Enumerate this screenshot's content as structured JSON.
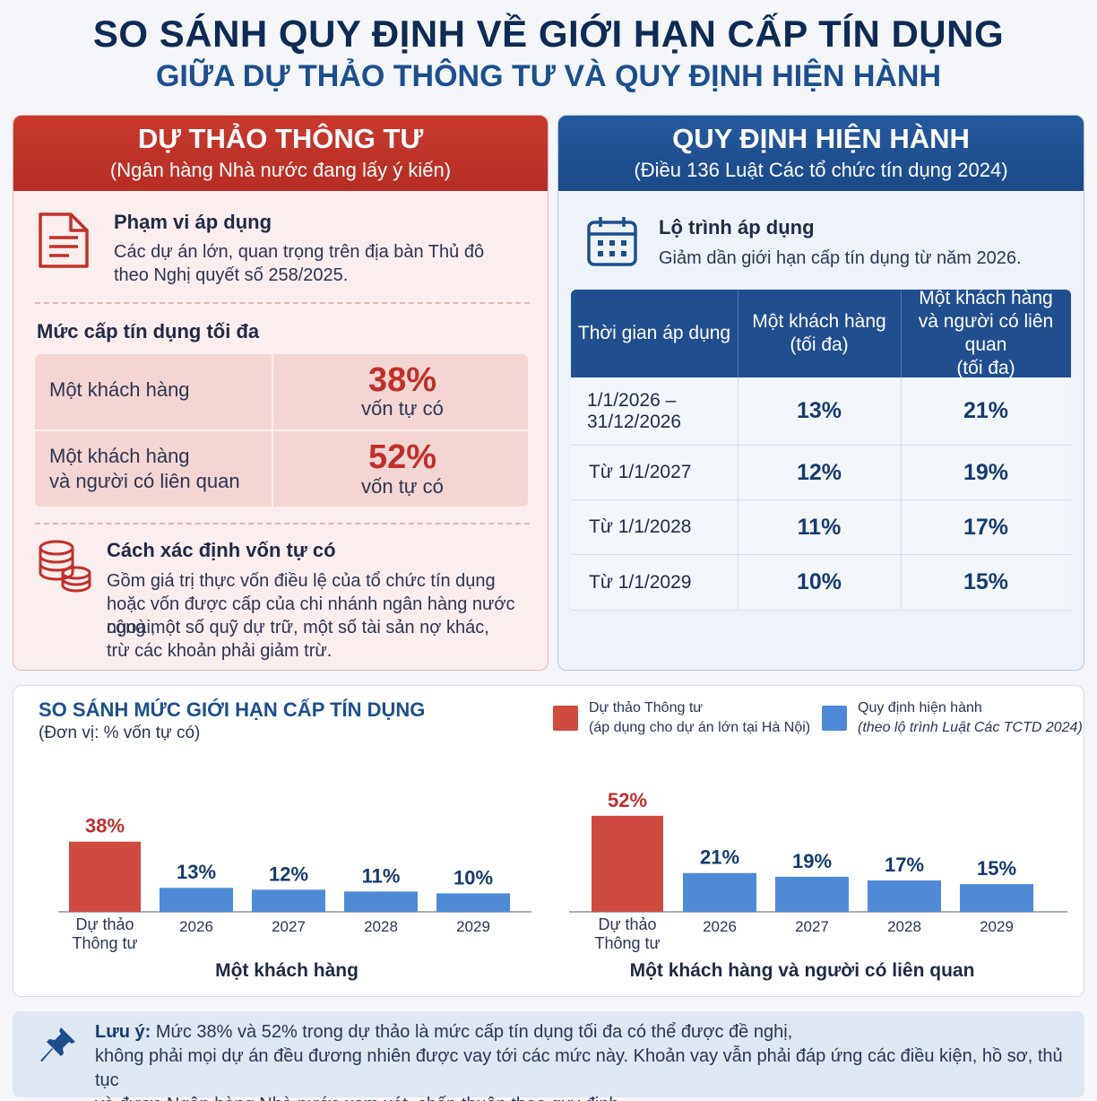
{
  "title": "SO SÁNH QUY ĐỊNH VỀ GIỚI HẠN CẤP TÍN DỤNG",
  "subtitle": "GIỮA DỰ THẢO THÔNG TƯ VÀ QUY ĐỊNH HIỆN HÀNH",
  "left": {
    "header": "DỰ THẢO THÔNG TƯ",
    "subheader": "(Ngân hàng Nhà nước đang lấy ý kiến)",
    "scope_title": "Phạm vi áp dụng",
    "scope_line1": "Các dự án lớn, quan trọng trên địa bàn Thủ đô",
    "scope_line2": "theo Nghị quyết số 258/2025.",
    "max_title": "Mức cấp tín dụng tối đa",
    "row1_label": "Một khách hàng",
    "row1_value": "38%",
    "row1_unit": "vốn tự có",
    "row2_label1": "Một khách hàng",
    "row2_label2": "và người có liên quan",
    "row2_value": "52%",
    "row2_unit": "vốn tự có",
    "capital_title": "Cách xác định vốn tự có",
    "capital_line1": "Gồm giá trị thực vốn điều lệ của tổ chức tín dụng",
    "capital_line2": "hoặc vốn được cấp của chi nhánh ngân hàng nước ngoài,",
    "capital_line3": "cộng một số quỹ dự trữ, một số tài sản nợ khác,",
    "capital_line4": "trừ các khoản phải giảm trừ."
  },
  "right": {
    "header": "QUY ĐỊNH HIỆN HÀNH",
    "subheader": "(Điều 136 Luật Các tổ chức tín dụng 2024)",
    "roadmap_title": "Lộ trình áp dụng",
    "roadmap_text": "Giảm dần giới hạn cấp tín dụng từ năm 2026.",
    "col1": "Thời gian áp dụng",
    "col2_line1": "Một khách hàng",
    "col2_line2": "(tối đa)",
    "col3_line1": "Một khách hàng",
    "col3_line2": "và người có liên quan",
    "col3_line3": "(tối đa)",
    "rows": [
      {
        "period1": "1/1/2026 –",
        "period2": "31/12/2026",
        "single": "13%",
        "related": "21%"
      },
      {
        "period1": "Từ 1/1/2027",
        "period2": "",
        "single": "12%",
        "related": "19%"
      },
      {
        "period1": "Từ 1/1/2028",
        "period2": "",
        "single": "11%",
        "related": "17%"
      },
      {
        "period1": "Từ 1/1/2029",
        "period2": "",
        "single": "10%",
        "related": "15%"
      }
    ]
  },
  "chart_section": {
    "title": "SO SÁNH MỨC GIỚI HẠN CẤP TÍN DỤNG",
    "unit": "(Đơn vị: % vốn tự có)",
    "legend_draft_line1": "Dự thảo Thông tư",
    "legend_draft_line2": "(áp dụng cho dự án lớn tại Hà Nội)",
    "legend_current_line1": "Quy định hiện hành",
    "legend_current_line2": "(theo lộ trình Luật Các TCTD 2024)",
    "color_draft": "#cf4a3f",
    "color_current": "#4f8ad6"
  },
  "chart_data": [
    {
      "type": "bar",
      "categories": [
        "Dự thảo Thông tư",
        "2026",
        "2027",
        "2028",
        "2029"
      ],
      "values": [
        38,
        13,
        12,
        11,
        10
      ],
      "labels": [
        "38%",
        "13%",
        "12%",
        "11%",
        "10%"
      ],
      "title": "Một khách hàng",
      "series": [
        {
          "name": "Dự thảo Thông tư",
          "values": [
            38,
            null,
            null,
            null,
            null
          ]
        },
        {
          "name": "Quy định hiện hành",
          "values": [
            null,
            13,
            12,
            11,
            10
          ]
        }
      ]
    },
    {
      "type": "bar",
      "categories": [
        "Dự thảo Thông tư",
        "2026",
        "2027",
        "2028",
        "2029"
      ],
      "values": [
        52,
        21,
        19,
        17,
        15
      ],
      "labels": [
        "52%",
        "21%",
        "19%",
        "17%",
        "15%"
      ],
      "title": "Một khách hàng và người có liên quan",
      "series": [
        {
          "name": "Dự thảo Thông tư",
          "values": [
            52,
            null,
            null,
            null,
            null
          ]
        },
        {
          "name": "Quy định hiện hành",
          "values": [
            null,
            21,
            19,
            17,
            15
          ]
        }
      ]
    }
  ],
  "note": {
    "label": "Lưu ý:",
    "line1": " Mức 38% và 52% trong dự thảo là mức cấp tín dụng tối đa có thể được đề nghị,",
    "line2": "không phải mọi dự án đều đương nhiên được vay tới các mức này. Khoản vay vẫn phải đáp ứng các điều kiện, hồ sơ, thủ tục",
    "line3": "và được Ngân hàng Nhà nước xem xét, chấp thuận theo quy định."
  }
}
